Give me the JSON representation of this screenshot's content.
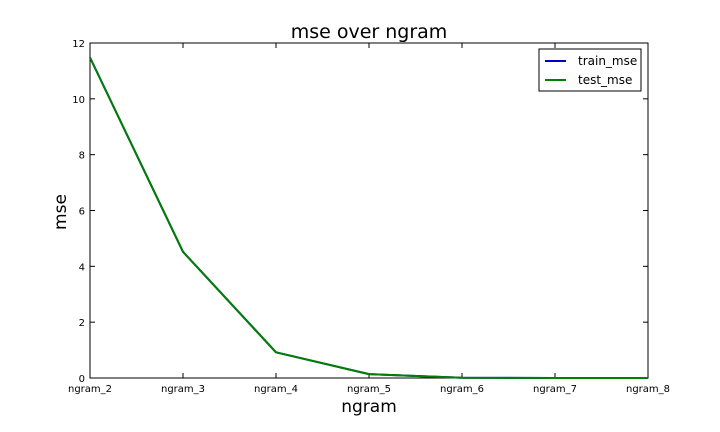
{
  "chart_data": {
    "type": "line",
    "title": "mse over ngram",
    "xlabel": "ngram",
    "ylabel": "mse",
    "categories": [
      "ngram_2",
      "ngram_3",
      "ngram_4",
      "ngram_5",
      "ngram_6",
      "ngram_7",
      "ngram_8"
    ],
    "ylim": [
      0,
      12
    ],
    "yticks": [
      "0",
      "2",
      "4",
      "6",
      "8",
      "10",
      "12"
    ],
    "grid": false,
    "legend_position": "top-right",
    "series": [
      {
        "name": "train_mse",
        "color": "#0000bf",
        "values": [
          11.48,
          4.52,
          0.92,
          0.14,
          0.01,
          0.0,
          0.0
        ]
      },
      {
        "name": "test_mse",
        "color": "#007f00",
        "values": [
          11.48,
          4.52,
          0.92,
          0.14,
          0.01,
          0.0,
          0.0
        ]
      }
    ]
  }
}
